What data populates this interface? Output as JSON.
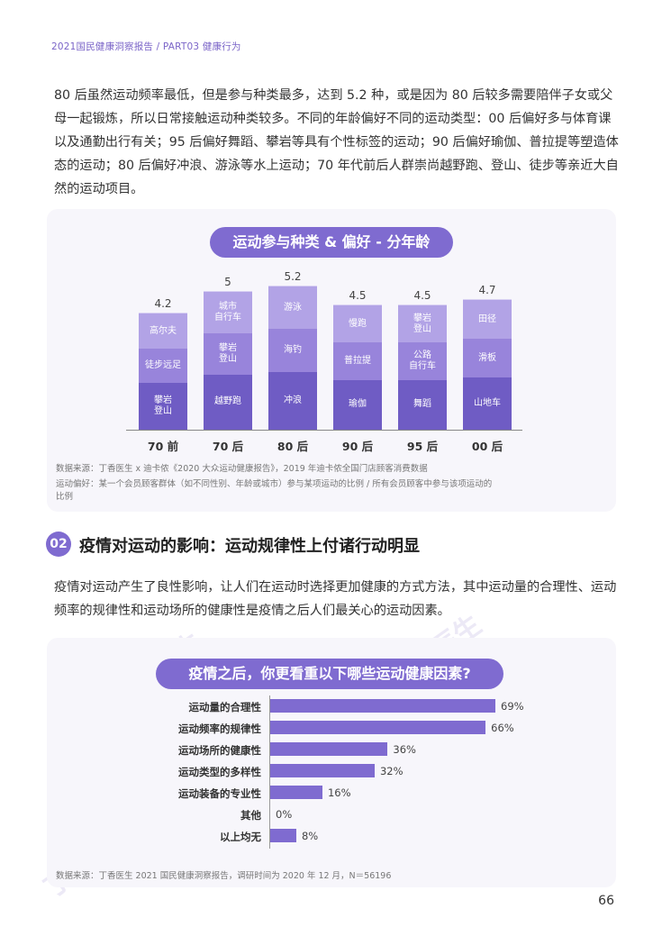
{
  "header": "2021国民健康洞察报告 / PART03 健康行为",
  "para1": "80 后虽然运动频率最低，但是参与种类最多，达到 5.2 种，或是因为 80 后较多需要陪伴子女或父母一起锻炼，所以日常接触运动种类较多。不同的年龄偏好不同的运动类型：00 后偏好多与体育课以及通勤出行有关；95 后偏好舞蹈、攀岩等具有个性标签的运动；90 后偏好瑜伽、普拉提等塑造体态的运动；80 后偏好冲浪、游泳等水上运动；70 年代前后人群崇尚越野跑、登山、徒步等亲近大自然的运动项目。",
  "chart1": {
    "title": "运动参与种类 & 偏好 - 分年龄",
    "source_line1": "数据来源：丁香医生 x 迪卡侬《2020 大众运动健康报告》，2019 年迪卡侬全国门店顾客消费数据",
    "source_line2": "运动偏好：某一个会员顾客群体（如不同性别、年龄或城市）参与某项运动的比例 / 所有会员顾客中参与该项运动的比例"
  },
  "section2": {
    "number": "02",
    "title": "疫情对运动的影响：运动规律性上付诸行动明显"
  },
  "para2": "疫情对运动产生了良性影响，让人们在运动时选择更加健康的方式方法，其中运动量的合理性、运动频率的规律性和运动场所的健康性是疫情之后人们最关心的运动因素。",
  "chart2": {
    "title": "疫情之后，你更看重以下哪些运动健康因素?",
    "source": "数据来源：丁香医生 2021 国民健康洞察报告，调研时间为 2020 年 12 月，N＝56196"
  },
  "page_number": "66",
  "watermark": "丁香医生",
  "colors": {
    "accent": "#7f6bd0",
    "light": "#b2a3e6",
    "mid": "#9884db",
    "dark": "#6f5cc4"
  },
  "chart_data": [
    {
      "type": "bar",
      "stacked": true,
      "categories": [
        "70 前",
        "70 后",
        "80 后",
        "90 后",
        "95 后",
        "00 后"
      ],
      "totals": [
        4.2,
        5,
        5.2,
        4.5,
        4.5,
        4.7
      ],
      "segments": [
        [
          "攀岩\n登山",
          "徒步远足",
          "高尔夫"
        ],
        [
          "越野跑",
          "攀岩\n登山",
          "城市\n自行车"
        ],
        [
          "冲浪",
          "海钓",
          "游泳"
        ],
        [
          "瑜伽",
          "普拉提",
          "慢跑"
        ],
        [
          "舞蹈",
          "公路\n自行车",
          "攀岩\n登山"
        ],
        [
          "山地车",
          "滑板",
          "田径"
        ]
      ]
    },
    {
      "type": "bar",
      "orientation": "horizontal",
      "categories": [
        "运动量的合理性",
        "运动频率的规律性",
        "运动场所的健康性",
        "运动类型的多样性",
        "运动装备的专业性",
        "其他",
        "以上均无"
      ],
      "values": [
        69,
        66,
        36,
        32,
        16,
        0,
        8
      ],
      "value_labels": [
        "69%",
        "66%",
        "36%",
        "32%",
        "16%",
        "0%",
        "8%"
      ]
    }
  ]
}
